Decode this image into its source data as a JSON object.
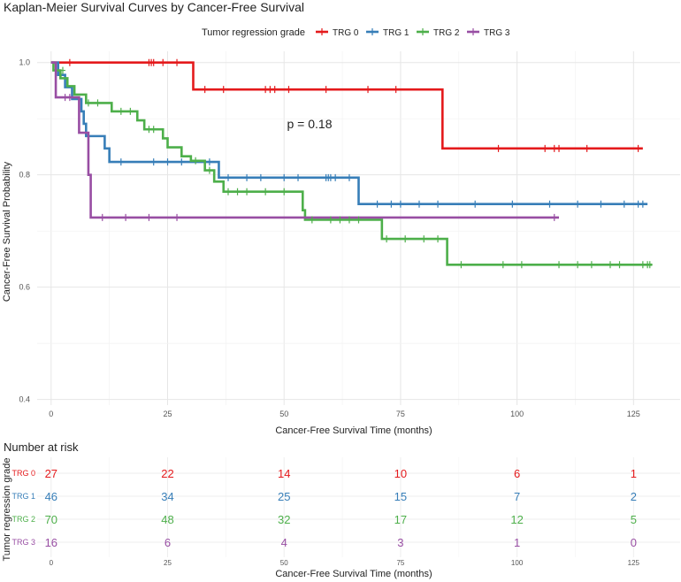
{
  "chart_data": [
    {
      "type": "line",
      "title": "Kaplan-Meier Survival Curves by Cancer-Free Survival",
      "xlabel": "Cancer-Free Survival Time (months)",
      "ylabel": "Cancer-Free Survival Probability",
      "xlim": [
        -3,
        135
      ],
      "ylim": [
        0.39,
        1.02
      ],
      "xticks": [
        0,
        25,
        50,
        75,
        100,
        125
      ],
      "yticks": [
        0.4,
        0.6,
        0.8,
        1.0
      ],
      "ytick_labels": [
        "0.4",
        "0.6",
        "0.8",
        "1.0"
      ],
      "grid": true,
      "legend": {
        "title": "Tumor regression grade",
        "position": "top"
      },
      "annotation": "p = 0.18",
      "series": [
        {
          "name": "TRG 0",
          "color": "#E41A1C",
          "steps": [
            [
              0,
              1.0
            ],
            [
              30.5,
              0.952
            ],
            [
              84,
              0.847
            ],
            [
              127,
              0.847
            ]
          ],
          "censors": [
            [
              4,
              1.0
            ],
            [
              21,
              1.0
            ],
            [
              21.5,
              1.0
            ],
            [
              22,
              1.0
            ],
            [
              24,
              1.0
            ],
            [
              27,
              1.0
            ],
            [
              33,
              0.952
            ],
            [
              37,
              0.952
            ],
            [
              46,
              0.952
            ],
            [
              47,
              0.952
            ],
            [
              48,
              0.952
            ],
            [
              51,
              0.952
            ],
            [
              59,
              0.952
            ],
            [
              68,
              0.952
            ],
            [
              74,
              0.952
            ],
            [
              96,
              0.847
            ],
            [
              106,
              0.847
            ],
            [
              108,
              0.847
            ],
            [
              109,
              0.847
            ],
            [
              115,
              0.847
            ],
            [
              126,
              0.847
            ]
          ]
        },
        {
          "name": "TRG 1",
          "color": "#377EB8",
          "steps": [
            [
              0,
              1.0
            ],
            [
              1.5,
              0.978
            ],
            [
              3,
              0.956
            ],
            [
              4.5,
              0.935
            ],
            [
              6.5,
              0.913
            ],
            [
              7,
              0.891
            ],
            [
              7.5,
              0.869
            ],
            [
              11.5,
              0.847
            ],
            [
              12.5,
              0.823
            ],
            [
              36,
              0.795
            ],
            [
              66,
              0.748
            ],
            [
              128,
              0.748
            ]
          ],
          "censors": [
            [
              15,
              0.823
            ],
            [
              22,
              0.823
            ],
            [
              25,
              0.823
            ],
            [
              28,
              0.823
            ],
            [
              34,
              0.823
            ],
            [
              38,
              0.795
            ],
            [
              42,
              0.795
            ],
            [
              45,
              0.795
            ],
            [
              50,
              0.795
            ],
            [
              53,
              0.795
            ],
            [
              59,
              0.795
            ],
            [
              59.5,
              0.795
            ],
            [
              60,
              0.795
            ],
            [
              61,
              0.795
            ],
            [
              64,
              0.795
            ],
            [
              70,
              0.748
            ],
            [
              73,
              0.748
            ],
            [
              75,
              0.748
            ],
            [
              79,
              0.748
            ],
            [
              83,
              0.748
            ],
            [
              91,
              0.748
            ],
            [
              99,
              0.748
            ],
            [
              107,
              0.748
            ],
            [
              113,
              0.748
            ],
            [
              118,
              0.748
            ],
            [
              123,
              0.748
            ],
            [
              126,
              0.748
            ],
            [
              127,
              0.748
            ]
          ]
        },
        {
          "name": "TRG 2",
          "color": "#4DAF4A",
          "steps": [
            [
              0,
              1.0
            ],
            [
              0.5,
              0.986
            ],
            [
              2,
              0.972
            ],
            [
              3.5,
              0.958
            ],
            [
              5,
              0.943
            ],
            [
              7.5,
              0.928
            ],
            [
              13,
              0.913
            ],
            [
              18.5,
              0.897
            ],
            [
              20,
              0.881
            ],
            [
              24,
              0.865
            ],
            [
              25,
              0.849
            ],
            [
              28,
              0.833
            ],
            [
              30,
              0.825
            ],
            [
              33,
              0.808
            ],
            [
              35,
              0.788
            ],
            [
              37,
              0.77
            ],
            [
              54,
              0.737
            ],
            [
              54.5,
              0.72
            ],
            [
              71,
              0.686
            ],
            [
              85,
              0.64
            ],
            [
              129,
              0.64
            ]
          ],
          "censors": [
            [
              2.5,
              0.986
            ],
            [
              8,
              0.928
            ],
            [
              10,
              0.928
            ],
            [
              15,
              0.913
            ],
            [
              17,
              0.913
            ],
            [
              21,
              0.881
            ],
            [
              22,
              0.881
            ],
            [
              31,
              0.825
            ],
            [
              34,
              0.808
            ],
            [
              38,
              0.77
            ],
            [
              40,
              0.77
            ],
            [
              42,
              0.77
            ],
            [
              46,
              0.77
            ],
            [
              50,
              0.77
            ],
            [
              56,
              0.72
            ],
            [
              60,
              0.72
            ],
            [
              62,
              0.72
            ],
            [
              64,
              0.72
            ],
            [
              66,
              0.72
            ],
            [
              72,
              0.686
            ],
            [
              76,
              0.686
            ],
            [
              80,
              0.686
            ],
            [
              83,
              0.686
            ],
            [
              88,
              0.64
            ],
            [
              97,
              0.64
            ],
            [
              101,
              0.64
            ],
            [
              109,
              0.64
            ],
            [
              113,
              0.64
            ],
            [
              116,
              0.64
            ],
            [
              120,
              0.64
            ],
            [
              122,
              0.64
            ],
            [
              127,
              0.64
            ],
            [
              128,
              0.64
            ],
            [
              128.5,
              0.64
            ]
          ]
        },
        {
          "name": "TRG 3",
          "color": "#984EA3",
          "steps": [
            [
              0,
              1.0
            ],
            [
              1,
              0.938
            ],
            [
              6,
              0.875
            ],
            [
              8,
              0.8
            ],
            [
              8.5,
              0.724
            ],
            [
              109,
              0.724
            ]
          ],
          "censors": [
            [
              3,
              0.938
            ],
            [
              4,
              0.938
            ],
            [
              11,
              0.724
            ],
            [
              16,
              0.724
            ],
            [
              21,
              0.724
            ],
            [
              27,
              0.724
            ],
            [
              108,
              0.724
            ]
          ]
        }
      ]
    },
    {
      "type": "table",
      "title": "Number at risk",
      "xlabel": "Cancer-Free Survival Time (months)",
      "ylabel": "Tumor regression grade",
      "time_points": [
        0,
        25,
        50,
        75,
        100,
        125
      ],
      "rows": [
        {
          "name": "TRG 0",
          "color": "#E41A1C",
          "values": [
            "27",
            "22",
            "14",
            "10",
            "6",
            "1"
          ]
        },
        {
          "name": "TRG 1",
          "color": "#377EB8",
          "values": [
            "46",
            "34",
            "25",
            "15",
            "7",
            "2"
          ]
        },
        {
          "name": "TRG 2",
          "color": "#4DAF4A",
          "values": [
            "70",
            "48",
            "32",
            "17",
            "12",
            "5"
          ]
        },
        {
          "name": "TRG 3",
          "color": "#984EA3",
          "values": [
            "16",
            "6",
            "4",
            "3",
            "1",
            "0"
          ]
        }
      ]
    }
  ]
}
